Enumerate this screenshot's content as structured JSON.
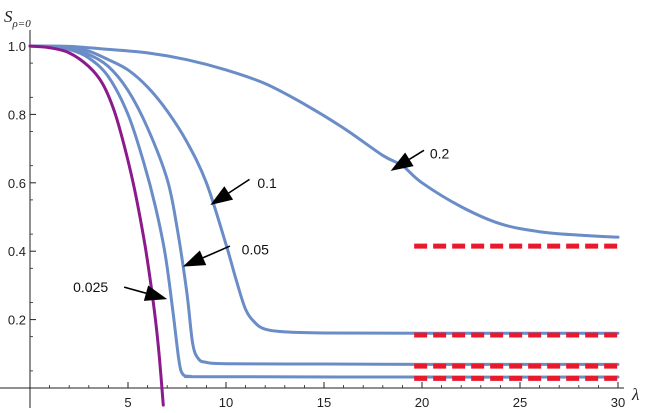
{
  "chart_data": {
    "type": "line",
    "ylabel": "S",
    "ylabel_subscript": "ρ=0",
    "xlabel": "λ",
    "xlim": [
      0,
      30
    ],
    "ylim": [
      0,
      1.0
    ],
    "x_ticks": [
      5,
      10,
      15,
      20,
      25,
      30
    ],
    "x_tick_labels": [
      "5",
      "10",
      "15",
      "20",
      "25",
      "30"
    ],
    "y_ticks": [
      0.2,
      0.4,
      0.6,
      0.8,
      1.0
    ],
    "y_tick_labels": [
      "0.2",
      "0.4",
      "0.6",
      "0.8",
      "1.0"
    ],
    "grid": false,
    "colors": {
      "curves": "#6A8CC7",
      "special": "#8B1A8C",
      "asymptote": "#E8192C",
      "axis": "#222222"
    },
    "series": [
      {
        "label": "0.2",
        "color": "#6A8CC7",
        "points": [
          [
            0,
            1.0
          ],
          [
            2,
            0.999
          ],
          [
            4,
            0.99
          ],
          [
            6,
            0.98
          ],
          [
            8,
            0.96
          ],
          [
            10,
            0.93
          ],
          [
            12,
            0.89
          ],
          [
            14,
            0.83
          ],
          [
            16,
            0.76
          ],
          [
            18,
            0.68
          ],
          [
            19,
            0.65
          ],
          [
            20,
            0.6
          ],
          [
            22,
            0.53
          ],
          [
            24,
            0.48
          ],
          [
            26,
            0.457
          ],
          [
            28,
            0.447
          ],
          [
            30,
            0.441
          ]
        ]
      },
      {
        "label": "0.1",
        "color": "#6A8CC7",
        "points": [
          [
            0,
            1.0
          ],
          [
            2,
            0.995
          ],
          [
            3,
            0.985
          ],
          [
            4,
            0.96
          ],
          [
            5,
            0.93
          ],
          [
            6,
            0.88
          ],
          [
            7,
            0.81
          ],
          [
            8,
            0.72
          ],
          [
            9,
            0.6
          ],
          [
            10,
            0.42
          ],
          [
            10.5,
            0.32
          ],
          [
            11,
            0.23
          ],
          [
            11.5,
            0.19
          ],
          [
            12,
            0.172
          ],
          [
            13,
            0.164
          ],
          [
            15,
            0.161
          ],
          [
            20,
            0.16
          ],
          [
            30,
            0.16
          ]
        ]
      },
      {
        "label": "0.05",
        "color": "#6A8CC7",
        "points": [
          [
            0,
            1.0
          ],
          [
            1,
            0.998
          ],
          [
            2,
            0.993
          ],
          [
            3,
            0.975
          ],
          [
            4,
            0.94
          ],
          [
            5,
            0.87
          ],
          [
            6,
            0.76
          ],
          [
            7,
            0.61
          ],
          [
            7.5,
            0.47
          ],
          [
            8,
            0.28
          ],
          [
            8.3,
            0.13
          ],
          [
            8.6,
            0.085
          ],
          [
            9,
            0.075
          ],
          [
            10,
            0.071
          ],
          [
            15,
            0.07
          ],
          [
            20,
            0.069
          ],
          [
            30,
            0.069
          ]
        ]
      },
      {
        "label": "0.025",
        "color": "#6A8CC7",
        "points": [
          [
            0,
            1.0
          ],
          [
            1,
            0.997
          ],
          [
            2,
            0.99
          ],
          [
            3,
            0.965
          ],
          [
            4,
            0.91
          ],
          [
            5,
            0.8
          ],
          [
            5.8,
            0.66
          ],
          [
            6.4,
            0.53
          ],
          [
            6.9,
            0.39
          ],
          [
            7.3,
            0.22
          ],
          [
            7.6,
            0.08
          ],
          [
            7.8,
            0.04
          ],
          [
            8.2,
            0.034
          ],
          [
            9,
            0.033
          ],
          [
            20,
            0.032
          ],
          [
            30,
            0.032
          ]
        ]
      },
      {
        "label": "",
        "color": "#8B1A8C",
        "points": [
          [
            0,
            1.0
          ],
          [
            1,
            0.995
          ],
          [
            2,
            0.98
          ],
          [
            3,
            0.94
          ],
          [
            3.7,
            0.89
          ],
          [
            4.3,
            0.81
          ],
          [
            4.8,
            0.71
          ],
          [
            5.3,
            0.59
          ],
          [
            5.8,
            0.44
          ],
          [
            6.1,
            0.33
          ],
          [
            6.4,
            0.2
          ],
          [
            6.6,
            0.09
          ],
          [
            6.8,
            -0.05
          ]
        ]
      }
    ],
    "asymptotes": [
      {
        "y": 0.415,
        "from_x": 19.6,
        "to_x": 30
      },
      {
        "y": 0.155,
        "from_x": 19.6,
        "to_x": 30
      },
      {
        "y": 0.064,
        "from_x": 19.6,
        "to_x": 30
      },
      {
        "y": 0.028,
        "from_x": 19.6,
        "to_x": 30
      }
    ],
    "annotations": [
      {
        "text": "0.2",
        "text_at": [
          20.4,
          0.685
        ],
        "arrow_from": [
          20.1,
          0.695
        ],
        "arrow_to": [
          18.4,
          0.635
        ]
      },
      {
        "text": "0.1",
        "text_at": [
          11.6,
          0.6
        ],
        "arrow_from": [
          11.2,
          0.61
        ],
        "arrow_to": [
          9.2,
          0.535
        ]
      },
      {
        "text": "0.05",
        "text_at": [
          10.8,
          0.405
        ],
        "arrow_from": [
          10.2,
          0.415
        ],
        "arrow_to": [
          7.8,
          0.355
        ]
      },
      {
        "text": "0.025",
        "text_at": [
          2.2,
          0.295
        ],
        "arrow_from": [
          4.8,
          0.295
        ],
        "arrow_to": [
          7.0,
          0.26
        ]
      }
    ]
  }
}
